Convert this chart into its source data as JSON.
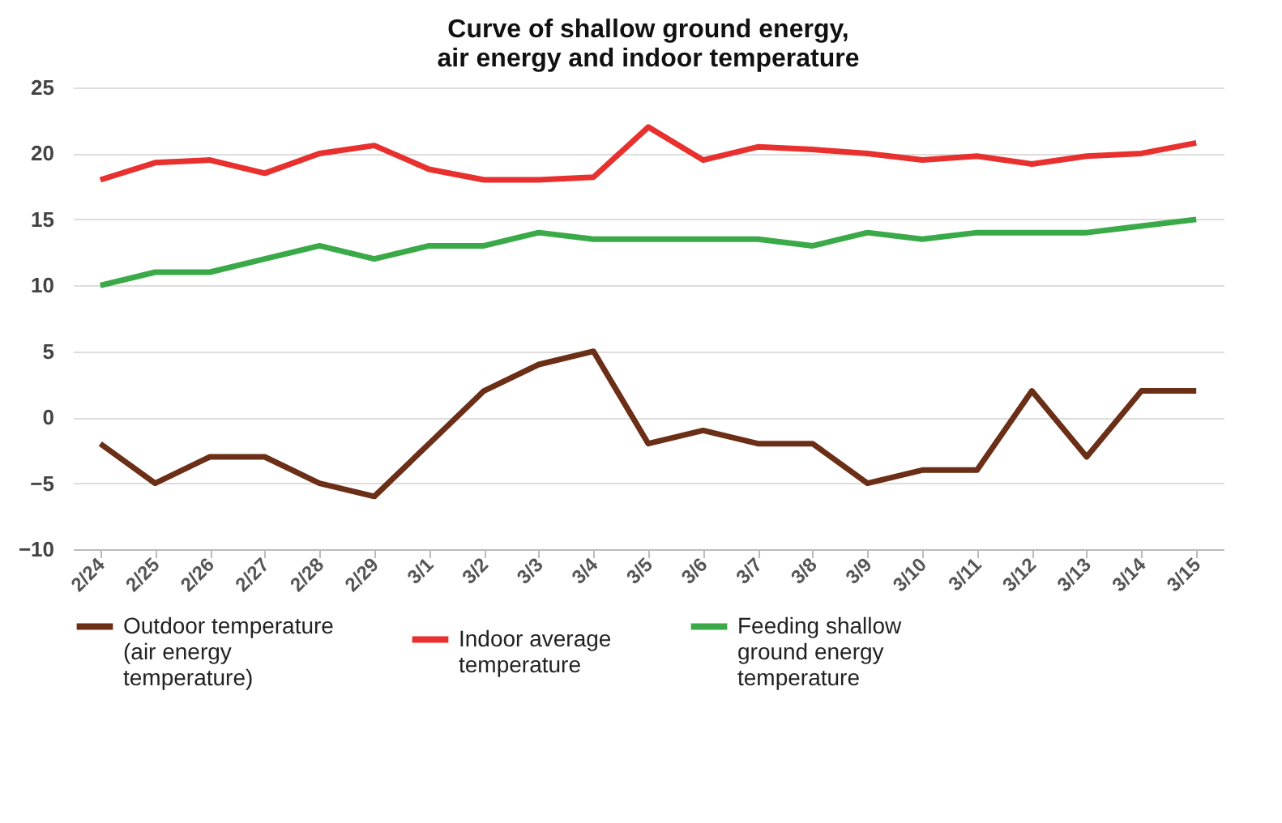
{
  "chart_data": {
    "type": "line",
    "title": "Curve of shallow ground energy,\nair energy and indoor temperature",
    "categories": [
      "2/24",
      "2/25",
      "2/26",
      "2/27",
      "2/28",
      "2/29",
      "3/1",
      "3/2",
      "3/3",
      "3/4",
      "3/5",
      "3/6",
      "3/7",
      "3/8",
      "3/9",
      "3/10",
      "3/11",
      "3/12",
      "3/13",
      "3/14",
      "3/15"
    ],
    "series": [
      {
        "name": "Outdoor temperature (air energy temperature)",
        "color": "#6b2e16",
        "values": [
          -2,
          -5,
          -3,
          -3,
          -5,
          -6,
          -2,
          2,
          4,
          5,
          -2,
          -1,
          -2,
          -2,
          -5,
          -4,
          -4,
          2,
          -3,
          2,
          2
        ]
      },
      {
        "name": "Indoor average temperature",
        "color": "#e8302e",
        "values": [
          18,
          19.3,
          19.5,
          18.5,
          20,
          20.6,
          18.8,
          18,
          18,
          18.2,
          22,
          19.5,
          20.5,
          20.3,
          20,
          19.5,
          19.8,
          19.2,
          19.8,
          20,
          20.8
        ]
      },
      {
        "name": "Feeding shallow ground energy temperature",
        "color": "#3aaa48",
        "values": [
          10,
          11,
          11,
          12,
          13,
          12,
          13,
          13,
          14,
          13.5,
          13.5,
          13.5,
          13.5,
          13,
          14,
          13.5,
          14,
          14,
          14,
          14.5,
          15
        ]
      }
    ],
    "ylim": [
      -10,
      25
    ],
    "yticks": [
      -10,
      -5,
      0,
      5,
      10,
      15,
      20,
      25
    ],
    "grid": "y",
    "legend": "bottom",
    "line_style": "solid"
  }
}
